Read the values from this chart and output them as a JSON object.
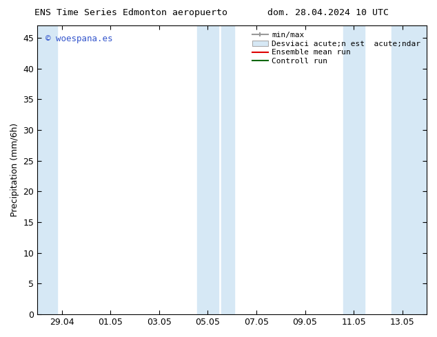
{
  "title_left": "ENS Time Series Edmonton aeropuerto",
  "title_right": "dom. 28.04.2024 10 UTC",
  "ylabel": "Precipitation (mm/6h)",
  "background_color": "#ffffff",
  "plot_bg_color": "#ffffff",
  "ylim": [
    0,
    47
  ],
  "yticks": [
    0,
    5,
    10,
    15,
    20,
    25,
    30,
    35,
    40,
    45
  ],
  "xtick_labels": [
    "29.04",
    "01.05",
    "03.05",
    "05.05",
    "07.05",
    "09.05",
    "11.05",
    "13.05"
  ],
  "legend_label_minmax": "min/max",
  "legend_label_band": "Desviaci acute;n est  acute;ndar",
  "legend_label_ensemble": "Ensemble mean run",
  "legend_label_control": "Controll run",
  "band_color": "#d6e8f5",
  "watermark_text": "© woespana.es",
  "watermark_color": "#3355cc",
  "border_color": "#000000",
  "tick_color": "#000000",
  "font_size": 9,
  "title_font_size": 9.5,
  "shaded_bands": [
    {
      "xstart": -0.5,
      "xend": -0.25
    },
    {
      "xstart": 2.62,
      "xend": 3.38
    },
    {
      "xstart": 5.62,
      "xend": 6.0
    },
    {
      "xstart": 6.62,
      "xend": 7.5
    }
  ]
}
